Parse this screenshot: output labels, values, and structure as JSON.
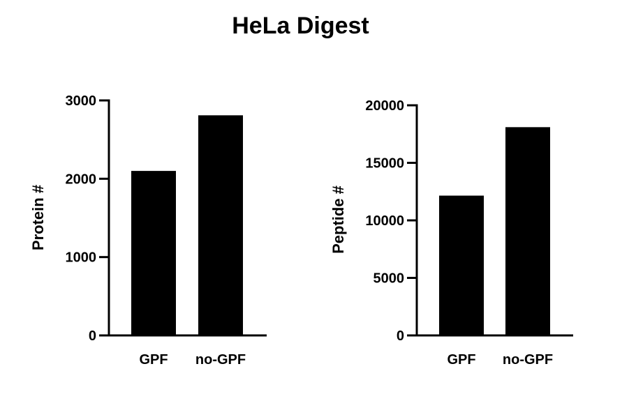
{
  "title": "HeLa Digest",
  "colors": {
    "bar": "#000000",
    "axis": "#000000",
    "background": "#ffffff"
  },
  "chart_data": [
    {
      "type": "bar",
      "title": "",
      "xlabel": "",
      "ylabel": "Protein #",
      "categories": [
        "GPF",
        "no-GPF"
      ],
      "values": [
        2100,
        2810
      ],
      "ylim": [
        0,
        3000
      ],
      "yticks": [
        0,
        1000,
        2000,
        3000
      ],
      "ytick_labels": [
        "0",
        "1000",
        "2000",
        "3000"
      ],
      "grid": false,
      "legend": "none"
    },
    {
      "type": "bar",
      "title": "",
      "xlabel": "",
      "ylabel": "Peptide #",
      "categories": [
        "GPF",
        "no-GPF"
      ],
      "values": [
        12150,
        18100
      ],
      "ylim": [
        0,
        20000
      ],
      "yticks": [
        0,
        5000,
        10000,
        15000,
        20000
      ],
      "ytick_labels": [
        "0",
        "5000",
        "10000",
        "15000",
        "20000"
      ],
      "grid": false,
      "legend": "none"
    }
  ]
}
